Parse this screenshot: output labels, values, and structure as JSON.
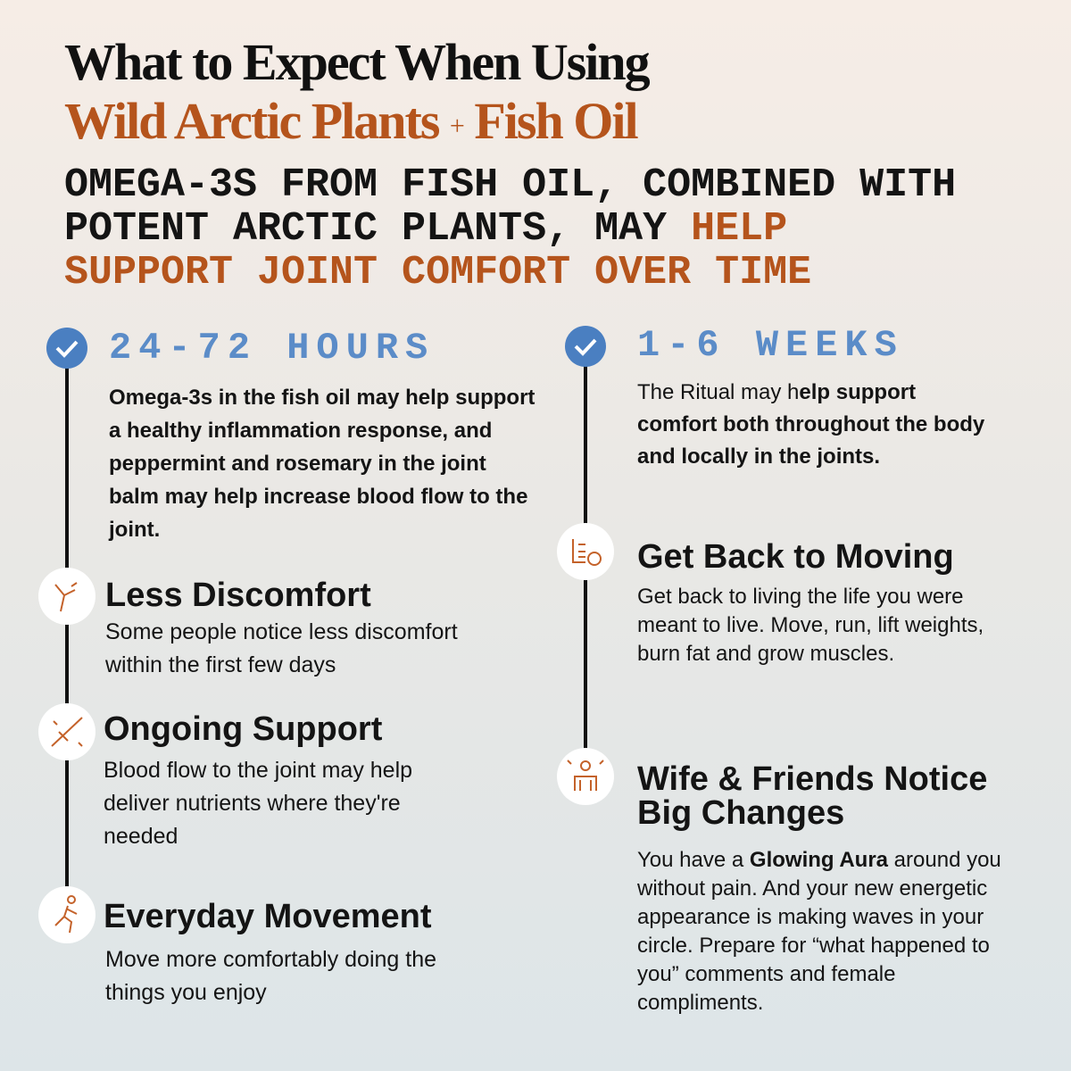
{
  "header": {
    "title_line1": "What to Expect When Using",
    "title_line2": [
      "Wild Arctic Plants",
      "+",
      "Fish Oil"
    ],
    "subtitle": [
      "OMEGA-3S FROM FISH OIL, COMBINED WITH",
      "POTENT ARCTIC PLANTS, MAY",
      "HELP",
      "SUPPORT JOINT COMFORT OVER TIME"
    ]
  },
  "left": {
    "heading": "24-72 HOURS",
    "body": "Omega-3s in the fish oil may help support a healthy inflammation response, and peppermint and rosemary in the joint balm may help increase blood flow to the joint.",
    "milestones": [
      {
        "title": "Less Discomfort",
        "description": "Some people notice less discomfort within the first few days"
      },
      {
        "title": "Ongoing Support",
        "description": "Blood flow to the joint may help deliver nutrients where they're needed"
      },
      {
        "title": "Everyday Movement",
        "description": "Move more comfortably doing the things you enjoy"
      }
    ]
  },
  "right": {
    "heading": "1-6 WEEKS",
    "body": [
      "The Ritual may h",
      "elp support comfort both throughout the body and locally in the joints."
    ],
    "milestones": [
      {
        "title": "Get Back to Moving",
        "description": [
          "Get back to living the life you were meant to live. Move, run, lift weights, burn fat and grow muscles."
        ]
      },
      {
        "title": "Wife & Friends Notice Big Changes",
        "description": [
          "You have a ",
          "Glowing Aura",
          " around you without pain. And your new energetic appearance is making waves in your circle. Prepare for “what happened to you” comments and female compliments."
        ]
      }
    ]
  }
}
